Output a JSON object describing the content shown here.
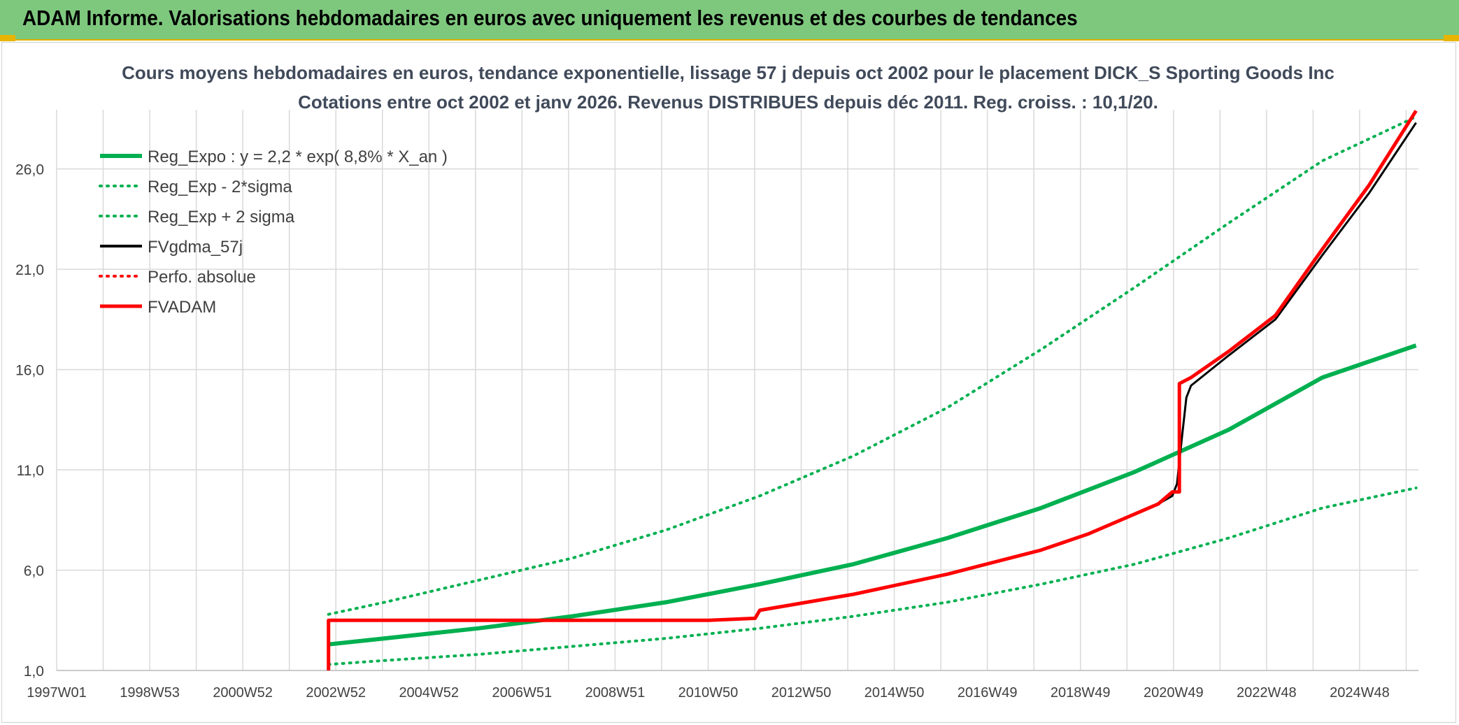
{
  "banner": {
    "title": "ADAM Informe. Valorisations hebdomadaires en euros avec uniquement les revenus et des courbes de tendances",
    "color": "#7ec87e",
    "accent": "#e8b400"
  },
  "chart_data": {
    "type": "line",
    "title": "Cours moyens hebdomadaires en euros, tendance exponentielle, lissage 57 j depuis oct 2002 pour le placement DICK_S Sporting Goods Inc",
    "subtitle": "Cotations entre oct 2002 et janv 2026. Revenus DISTRIBUES depuis déc 2011. Reg. croiss. : 10,1/20.",
    "xlabel": "",
    "ylabel": "",
    "x_tick_labels": [
      "1997W01",
      "1998W53",
      "2000W52",
      "2002W52",
      "2004W52",
      "2006W51",
      "2008W51",
      "2010W50",
      "2012W50",
      "2014W50",
      "2016W49",
      "2018W49",
      "2020W49",
      "2022W48",
      "2024W48"
    ],
    "x_range": [
      1997.0,
      2026.05
    ],
    "y_tick_labels": [
      "1,0",
      "6,0",
      "11,0",
      "16,0",
      "21,0",
      "26,0"
    ],
    "ylim": [
      1.0,
      28.6
    ],
    "grid": true,
    "legend_position": "top-left",
    "series": [
      {
        "name": "Reg_Expo : y = 2,2 * exp( 8,8% *  X_an )",
        "color": "#00b050",
        "style": "solid",
        "width": 6,
        "x": [
          2002.8,
          2004,
          2006,
          2008,
          2010,
          2012,
          2014,
          2016,
          2018,
          2020,
          2022,
          2024,
          2026
        ],
        "y": [
          2.3,
          2.6,
          3.1,
          3.7,
          4.4,
          5.3,
          6.3,
          7.6,
          9.1,
          10.9,
          13.0,
          15.6,
          17.2
        ]
      },
      {
        "name": "Reg_Exp - 2*sigma",
        "color": "#00b050",
        "style": "dotted",
        "width": 4,
        "x": [
          2002.8,
          2004,
          2006,
          2008,
          2010,
          2012,
          2014,
          2016,
          2018,
          2020,
          2022,
          2024,
          2026
        ],
        "y": [
          1.3,
          1.5,
          1.8,
          2.2,
          2.6,
          3.1,
          3.7,
          4.4,
          5.3,
          6.3,
          7.6,
          9.1,
          10.1
        ]
      },
      {
        "name": "Reg_Exp + 2 sigma",
        "color": "#00b050",
        "style": "dotted",
        "width": 4,
        "x": [
          2002.8,
          2004,
          2006,
          2008,
          2010,
          2012,
          2014,
          2016,
          2018,
          2020,
          2022,
          2024,
          2026
        ],
        "y": [
          3.8,
          4.4,
          5.5,
          6.6,
          8.0,
          9.7,
          11.7,
          14.1,
          17.0,
          20.1,
          23.3,
          26.4,
          28.6
        ]
      },
      {
        "name": "FVgdma_57j",
        "color": "#000000",
        "style": "solid",
        "width": 3,
        "x": [
          2002.8,
          2010.9,
          2011.9,
          2012,
          2014,
          2016,
          2018,
          2019,
          2020,
          2020.5,
          2020.8,
          2020.9,
          2021.0,
          2021.1,
          2021.2,
          2022,
          2023,
          2024,
          2025,
          2026
        ],
        "y": [
          3.5,
          3.5,
          3.6,
          4.0,
          4.8,
          5.8,
          7.0,
          7.8,
          8.8,
          9.3,
          9.7,
          10.3,
          12.5,
          14.6,
          15.2,
          16.7,
          18.5,
          21.7,
          24.8,
          28.3
        ]
      },
      {
        "name": "Perfo. absolue",
        "color": "#ff0000",
        "style": "dotted",
        "width": 3,
        "x": [],
        "y": []
      },
      {
        "name": "FVADAM",
        "color": "#ff0000",
        "style": "solid",
        "width": 5,
        "x": [
          2002.8,
          2002.8,
          2010.9,
          2011.9,
          2012,
          2014,
          2016,
          2018,
          2019,
          2020,
          2020.5,
          2020.8,
          2020.95,
          2020.95,
          2021.2,
          2022,
          2023,
          2024,
          2025,
          2026
        ],
        "y": [
          1.0,
          3.5,
          3.5,
          3.6,
          4.0,
          4.8,
          5.8,
          7.0,
          7.8,
          8.8,
          9.3,
          9.9,
          9.9,
          15.3,
          15.6,
          16.9,
          18.7,
          22.0,
          25.2,
          28.9
        ]
      }
    ]
  }
}
